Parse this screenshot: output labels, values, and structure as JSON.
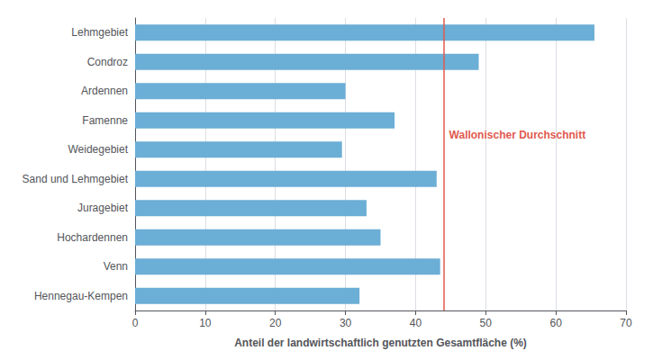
{
  "chart_data": {
    "type": "bar",
    "orientation": "horizontal",
    "categories": [
      "Lehmgebiet",
      "Condroz",
      "Ardennen",
      "Famenne",
      "Weidegebiet",
      "Sand und Lehmgebiet",
      "Juragebiet",
      "Hochardennen",
      "Venn",
      "Hennegau-Kempen"
    ],
    "values": [
      65.5,
      49.0,
      30.0,
      37.0,
      29.5,
      43.0,
      33.0,
      35.0,
      43.5,
      32.0
    ],
    "color": "#6baed6",
    "xlabel": "Anteil der landwirtschaftlich genutzten Gesamtfläche (%)",
    "xlim": [
      0,
      70
    ],
    "xticks": [
      0,
      10,
      20,
      30,
      40,
      50,
      60,
      70
    ],
    "grid": true,
    "annotations": [
      {
        "type": "vline",
        "x": 44.0,
        "text": "Wallonischer Durchschnitt",
        "color": "#e05a4e"
      }
    ]
  }
}
